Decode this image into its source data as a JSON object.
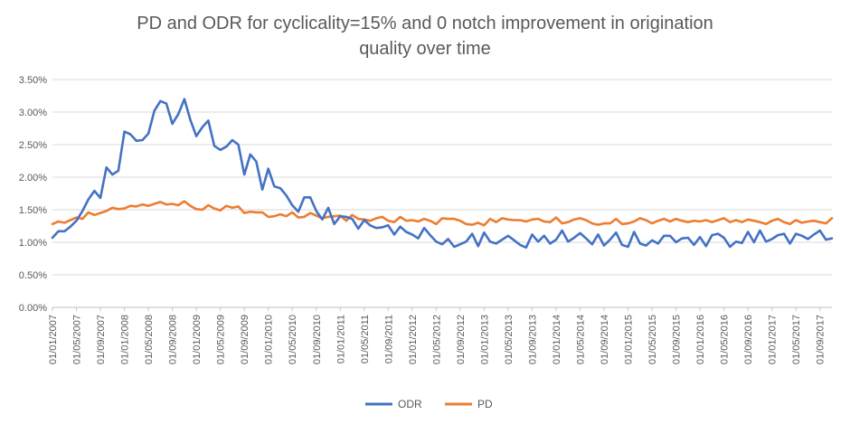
{
  "chart_data": {
    "type": "line",
    "title_line1": "PD and ODR for cyclicality=15% and 0 notch improvement in origination",
    "title_line2": "quality over time",
    "xlabel": "",
    "ylabel": "",
    "ylim": [
      0,
      0.035
    ],
    "y_ticks": [
      "0.00%",
      "0.50%",
      "1.00%",
      "1.50%",
      "2.00%",
      "2.50%",
      "3.00%",
      "3.50%"
    ],
    "x_tick_labels": [
      "01/01/2007",
      "01/05/2007",
      "01/09/2007",
      "01/01/2008",
      "01/05/2008",
      "01/09/2008",
      "01/01/2009",
      "01/05/2009",
      "01/09/2009",
      "01/01/2010",
      "01/05/2010",
      "01/09/2010",
      "01/01/2011",
      "01/05/2011",
      "01/09/2011",
      "01/01/2012",
      "01/05/2012",
      "01/09/2012",
      "01/01/2013",
      "01/05/2013",
      "01/09/2013",
      "01/01/2014",
      "01/05/2014",
      "01/09/2014",
      "01/01/2015",
      "01/05/2015",
      "01/09/2015",
      "01/01/2016",
      "01/05/2016",
      "01/09/2016",
      "01/01/2017",
      "01/05/2017",
      "01/09/2017"
    ],
    "grid": "horizontal",
    "legend_position": "bottom",
    "series": [
      {
        "name": "ODR",
        "color": "#4472C4",
        "values": [
          0.0107,
          0.0117,
          0.0117,
          0.0124,
          0.0133,
          0.0148,
          0.0166,
          0.0179,
          0.0168,
          0.0215,
          0.0204,
          0.021,
          0.027,
          0.0266,
          0.0256,
          0.0257,
          0.0267,
          0.0302,
          0.0317,
          0.0313,
          0.0282,
          0.0297,
          0.032,
          0.0288,
          0.0263,
          0.0277,
          0.0287,
          0.0248,
          0.0242,
          0.0247,
          0.0257,
          0.025,
          0.0204,
          0.0235,
          0.0224,
          0.0181,
          0.0213,
          0.0186,
          0.0183,
          0.0172,
          0.0157,
          0.0147,
          0.0169,
          0.0169,
          0.0148,
          0.0135,
          0.0153,
          0.0128,
          0.014,
          0.0139,
          0.0136,
          0.0121,
          0.0134,
          0.0126,
          0.0122,
          0.0123,
          0.0126,
          0.0112,
          0.0124,
          0.0116,
          0.0112,
          0.0106,
          0.0122,
          0.0111,
          0.0101,
          0.0097,
          0.0105,
          0.0093,
          0.0097,
          0.0101,
          0.0113,
          0.0094,
          0.0115,
          0.0101,
          0.0098,
          0.0104,
          0.011,
          0.0103,
          0.0096,
          0.0092,
          0.0112,
          0.0101,
          0.011,
          0.0098,
          0.0104,
          0.0118,
          0.0101,
          0.0107,
          0.0114,
          0.0106,
          0.0097,
          0.0112,
          0.0095,
          0.0104,
          0.0115,
          0.0096,
          0.0093,
          0.0116,
          0.0098,
          0.0095,
          0.0103,
          0.0098,
          0.011,
          0.011,
          0.01,
          0.0106,
          0.0107,
          0.0096,
          0.0108,
          0.0094,
          0.0111,
          0.0113,
          0.0107,
          0.0093,
          0.0101,
          0.0099,
          0.0116,
          0.01,
          0.0118,
          0.0101,
          0.0105,
          0.0111,
          0.0113,
          0.0098,
          0.0113,
          0.011,
          0.0105,
          0.0112,
          0.0118,
          0.0104,
          0.0106
        ]
      },
      {
        "name": "PD",
        "color": "#ED7D31",
        "values": [
          0.0128,
          0.0132,
          0.013,
          0.0134,
          0.0138,
          0.0136,
          0.0146,
          0.0142,
          0.0145,
          0.0148,
          0.0153,
          0.0151,
          0.0152,
          0.0156,
          0.0155,
          0.0158,
          0.0156,
          0.0159,
          0.0162,
          0.0158,
          0.0159,
          0.0157,
          0.0163,
          0.0156,
          0.0151,
          0.015,
          0.0157,
          0.0152,
          0.0149,
          0.0156,
          0.0153,
          0.0155,
          0.0145,
          0.0147,
          0.0146,
          0.0146,
          0.0139,
          0.014,
          0.0143,
          0.014,
          0.0146,
          0.0138,
          0.0139,
          0.0145,
          0.0141,
          0.0137,
          0.0139,
          0.014,
          0.0141,
          0.0133,
          0.0142,
          0.0136,
          0.0135,
          0.0133,
          0.0137,
          0.0139,
          0.0133,
          0.0131,
          0.0139,
          0.0133,
          0.0134,
          0.0132,
          0.0136,
          0.0133,
          0.0128,
          0.0137,
          0.0136,
          0.0136,
          0.0133,
          0.0128,
          0.0127,
          0.013,
          0.0126,
          0.0136,
          0.0131,
          0.0137,
          0.0135,
          0.0134,
          0.0134,
          0.0132,
          0.0135,
          0.0136,
          0.0132,
          0.0131,
          0.0138,
          0.0129,
          0.0131,
          0.0135,
          0.0137,
          0.0134,
          0.0129,
          0.0127,
          0.0129,
          0.0129,
          0.0136,
          0.0128,
          0.0129,
          0.0132,
          0.0137,
          0.0134,
          0.0129,
          0.0133,
          0.0136,
          0.0132,
          0.0136,
          0.0133,
          0.0131,
          0.0133,
          0.0132,
          0.0134,
          0.0131,
          0.0134,
          0.0137,
          0.0131,
          0.0134,
          0.0131,
          0.0135,
          0.0133,
          0.0131,
          0.0128,
          0.0133,
          0.0136,
          0.0131,
          0.0128,
          0.0134,
          0.013,
          0.0132,
          0.0133,
          0.0131,
          0.0129,
          0.0137
        ]
      }
    ]
  }
}
